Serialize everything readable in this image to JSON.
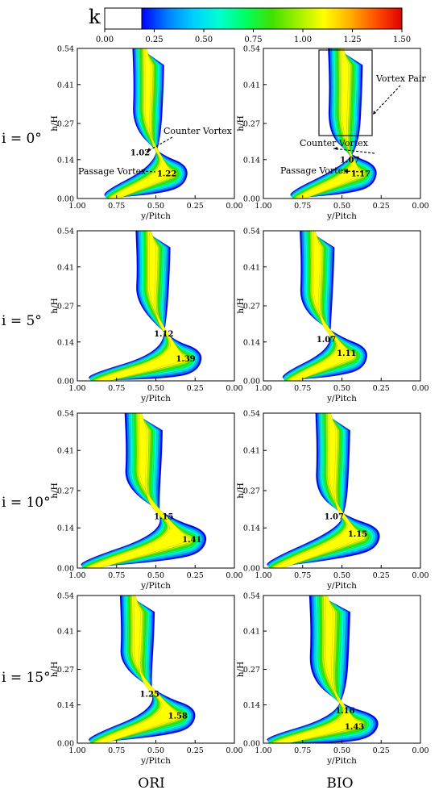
{
  "colorbar": {
    "label": "k",
    "ticks": [
      "0.00",
      "0.25",
      "0.50",
      "0.75",
      "1.00",
      "1.25",
      "1.50"
    ],
    "range": [
      0,
      1.5
    ],
    "white_below": 0.16,
    "colors": [
      "#0000ff",
      "#0080ff",
      "#00d0ff",
      "#00ffd0",
      "#00ff60",
      "#40e000",
      "#a0f000",
      "#ffff00",
      "#ffb000",
      "#ff5000",
      "#e00000"
    ]
  },
  "chart_data": {
    "type": "contour",
    "xlabel": "y/Pitch",
    "ylabel": "h/H",
    "x_ticks": [
      "1.00",
      "0.75",
      "0.50",
      "0.25",
      "0.00"
    ],
    "y_ticks": [
      "0.54",
      "0.41",
      "0.27",
      "0.14",
      "0.00"
    ],
    "xlim": [
      1.0,
      0.0
    ],
    "ylim": [
      0.0,
      0.54
    ],
    "columns": [
      "ORI",
      "BIO"
    ],
    "rows": [
      {
        "label": "i = 0°",
        "ORI": {
          "labels": [
            {
              "text": "1.02",
              "x": 0.6,
              "y": 0.165
            },
            {
              "text": "1.22",
              "x": 0.43,
              "y": 0.09
            }
          ]
        },
        "BIO": {
          "labels": [
            {
              "text": "1.07",
              "x": 0.45,
              "y": 0.14
            },
            {
              "text": "1.17",
              "x": 0.38,
              "y": 0.09
            }
          ]
        }
      },
      {
        "label": "i = 5°",
        "ORI": {
          "labels": [
            {
              "text": "1.12",
              "x": 0.45,
              "y": 0.17
            },
            {
              "text": "1.39",
              "x": 0.31,
              "y": 0.08
            }
          ]
        },
        "BIO": {
          "labels": [
            {
              "text": "1.07",
              "x": 0.6,
              "y": 0.15
            },
            {
              "text": "1.11",
              "x": 0.47,
              "y": 0.1
            }
          ]
        }
      },
      {
        "label": "i = 10°",
        "ORI": {
          "labels": [
            {
              "text": "1.15",
              "x": 0.45,
              "y": 0.18
            },
            {
              "text": "1.41",
              "x": 0.27,
              "y": 0.1
            }
          ]
        },
        "BIO": {
          "labels": [
            {
              "text": "1.07",
              "x": 0.55,
              "y": 0.18
            },
            {
              "text": "1.15",
              "x": 0.4,
              "y": 0.12
            }
          ]
        }
      },
      {
        "label": "i = 15°",
        "ORI": {
          "labels": [
            {
              "text": "1.25",
              "x": 0.54,
              "y": 0.18
            },
            {
              "text": "1.58",
              "x": 0.36,
              "y": 0.1
            }
          ]
        },
        "BIO": {
          "labels": [
            {
              "text": "1.16",
              "x": 0.48,
              "y": 0.12
            },
            {
              "text": "1.43",
              "x": 0.42,
              "y": 0.06
            }
          ]
        }
      }
    ],
    "annotations": [
      "Counter Vortex",
      "Passage Vortex",
      "Counter Vortex",
      "Passage Vortex",
      "Vortex Pair"
    ]
  }
}
